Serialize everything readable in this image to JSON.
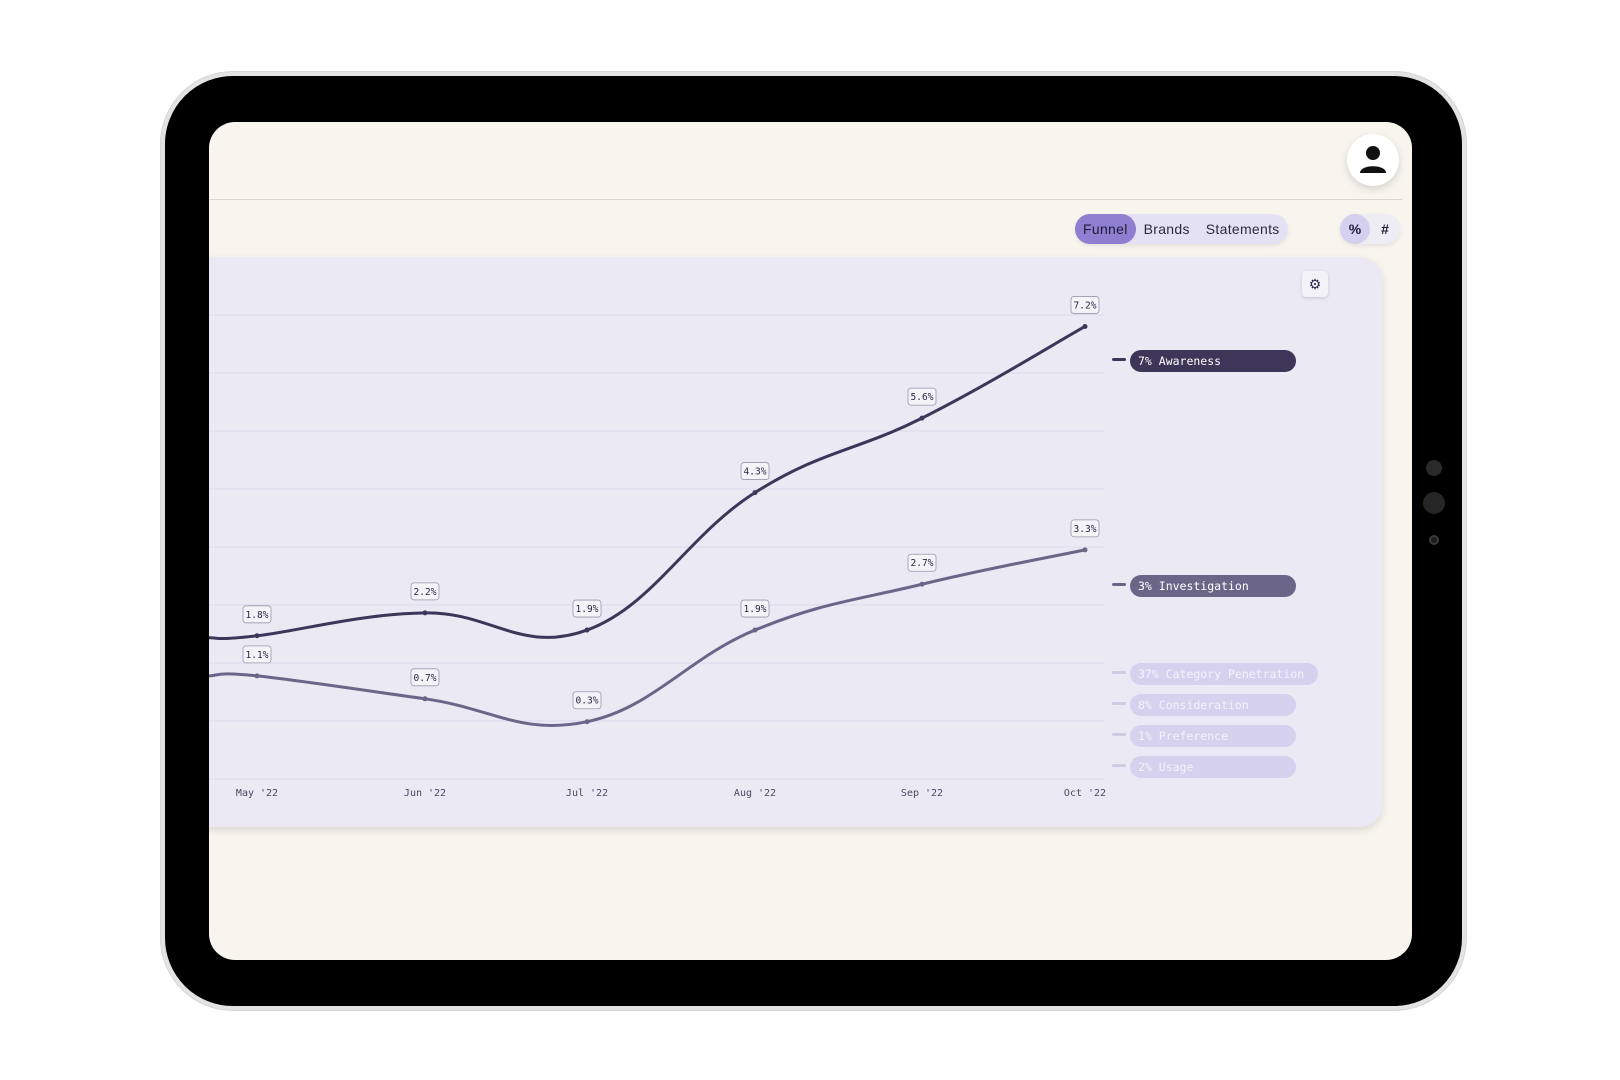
{
  "header": {
    "avatar_icon": "user-icon"
  },
  "view_tabs": [
    {
      "label": "Funnel",
      "active": true
    },
    {
      "label": "Brands",
      "active": false
    },
    {
      "label": "Statements",
      "active": false
    }
  ],
  "unit_toggle": [
    {
      "label": "%",
      "active": true
    },
    {
      "label": "#",
      "active": false
    }
  ],
  "chart_settings": {
    "icon": "gear-icon",
    "glyph": "⚙"
  },
  "legend": [
    {
      "label": "7% Awareness",
      "active": true,
      "color": "#3d3659"
    },
    {
      "label": "3% Investigation",
      "active": true,
      "color": "#6b6688"
    },
    {
      "label": "37% Category Penetration",
      "active": false,
      "color": "#d6d1ee"
    },
    {
      "label": "8% Consideration",
      "active": false,
      "color": "#d6d1ee"
    },
    {
      "label": "1% Preference",
      "active": false,
      "color": "#d6d1ee"
    },
    {
      "label": "2% Usage",
      "active": false,
      "color": "#d6d1ee"
    }
  ],
  "chart_data": {
    "type": "line",
    "categories": [
      "May '22",
      "Jun '22",
      "Jul '22",
      "Aug '22",
      "Sep '22",
      "Oct '22"
    ],
    "series": [
      {
        "name": "Awareness",
        "values": [
          1.8,
          2.2,
          1.9,
          4.3,
          5.6,
          7.2
        ],
        "labels": [
          "1.8%",
          "2.2%",
          "1.9%",
          "4.3%",
          "5.6%",
          "7.2%"
        ],
        "color": "#3d3659"
      },
      {
        "name": "Investigation",
        "values": [
          1.1,
          0.7,
          0.3,
          1.9,
          2.7,
          3.3
        ],
        "labels": [
          "1.1%",
          "0.7%",
          "0.3%",
          "1.9%",
          "2.7%",
          "3.3%"
        ],
        "color": "#6b6688"
      }
    ],
    "ylim": [
      -0.7,
      7.4
    ],
    "grid": true
  }
}
